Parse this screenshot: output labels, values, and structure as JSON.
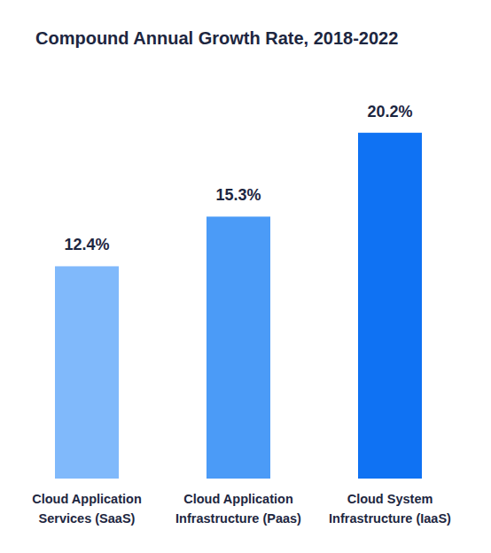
{
  "chart_data": {
    "type": "bar",
    "title": "Compound Annual Growth Rate, 2018-2022",
    "categories": [
      "Cloud Application Services (SaaS)",
      "Cloud Application Infrastructure (Paas)",
      "Cloud System Infrastructure (IaaS)"
    ],
    "values": [
      12.4,
      15.3,
      20.2
    ],
    "value_labels": [
      "12.4%",
      "15.3%",
      "20.2%"
    ],
    "colors": [
      "#80b9fb",
      "#4b9bf7",
      "#0f72f3"
    ],
    "ylim": [
      0,
      22
    ],
    "grid": false,
    "data_labels": true,
    "tick_labels": false
  }
}
